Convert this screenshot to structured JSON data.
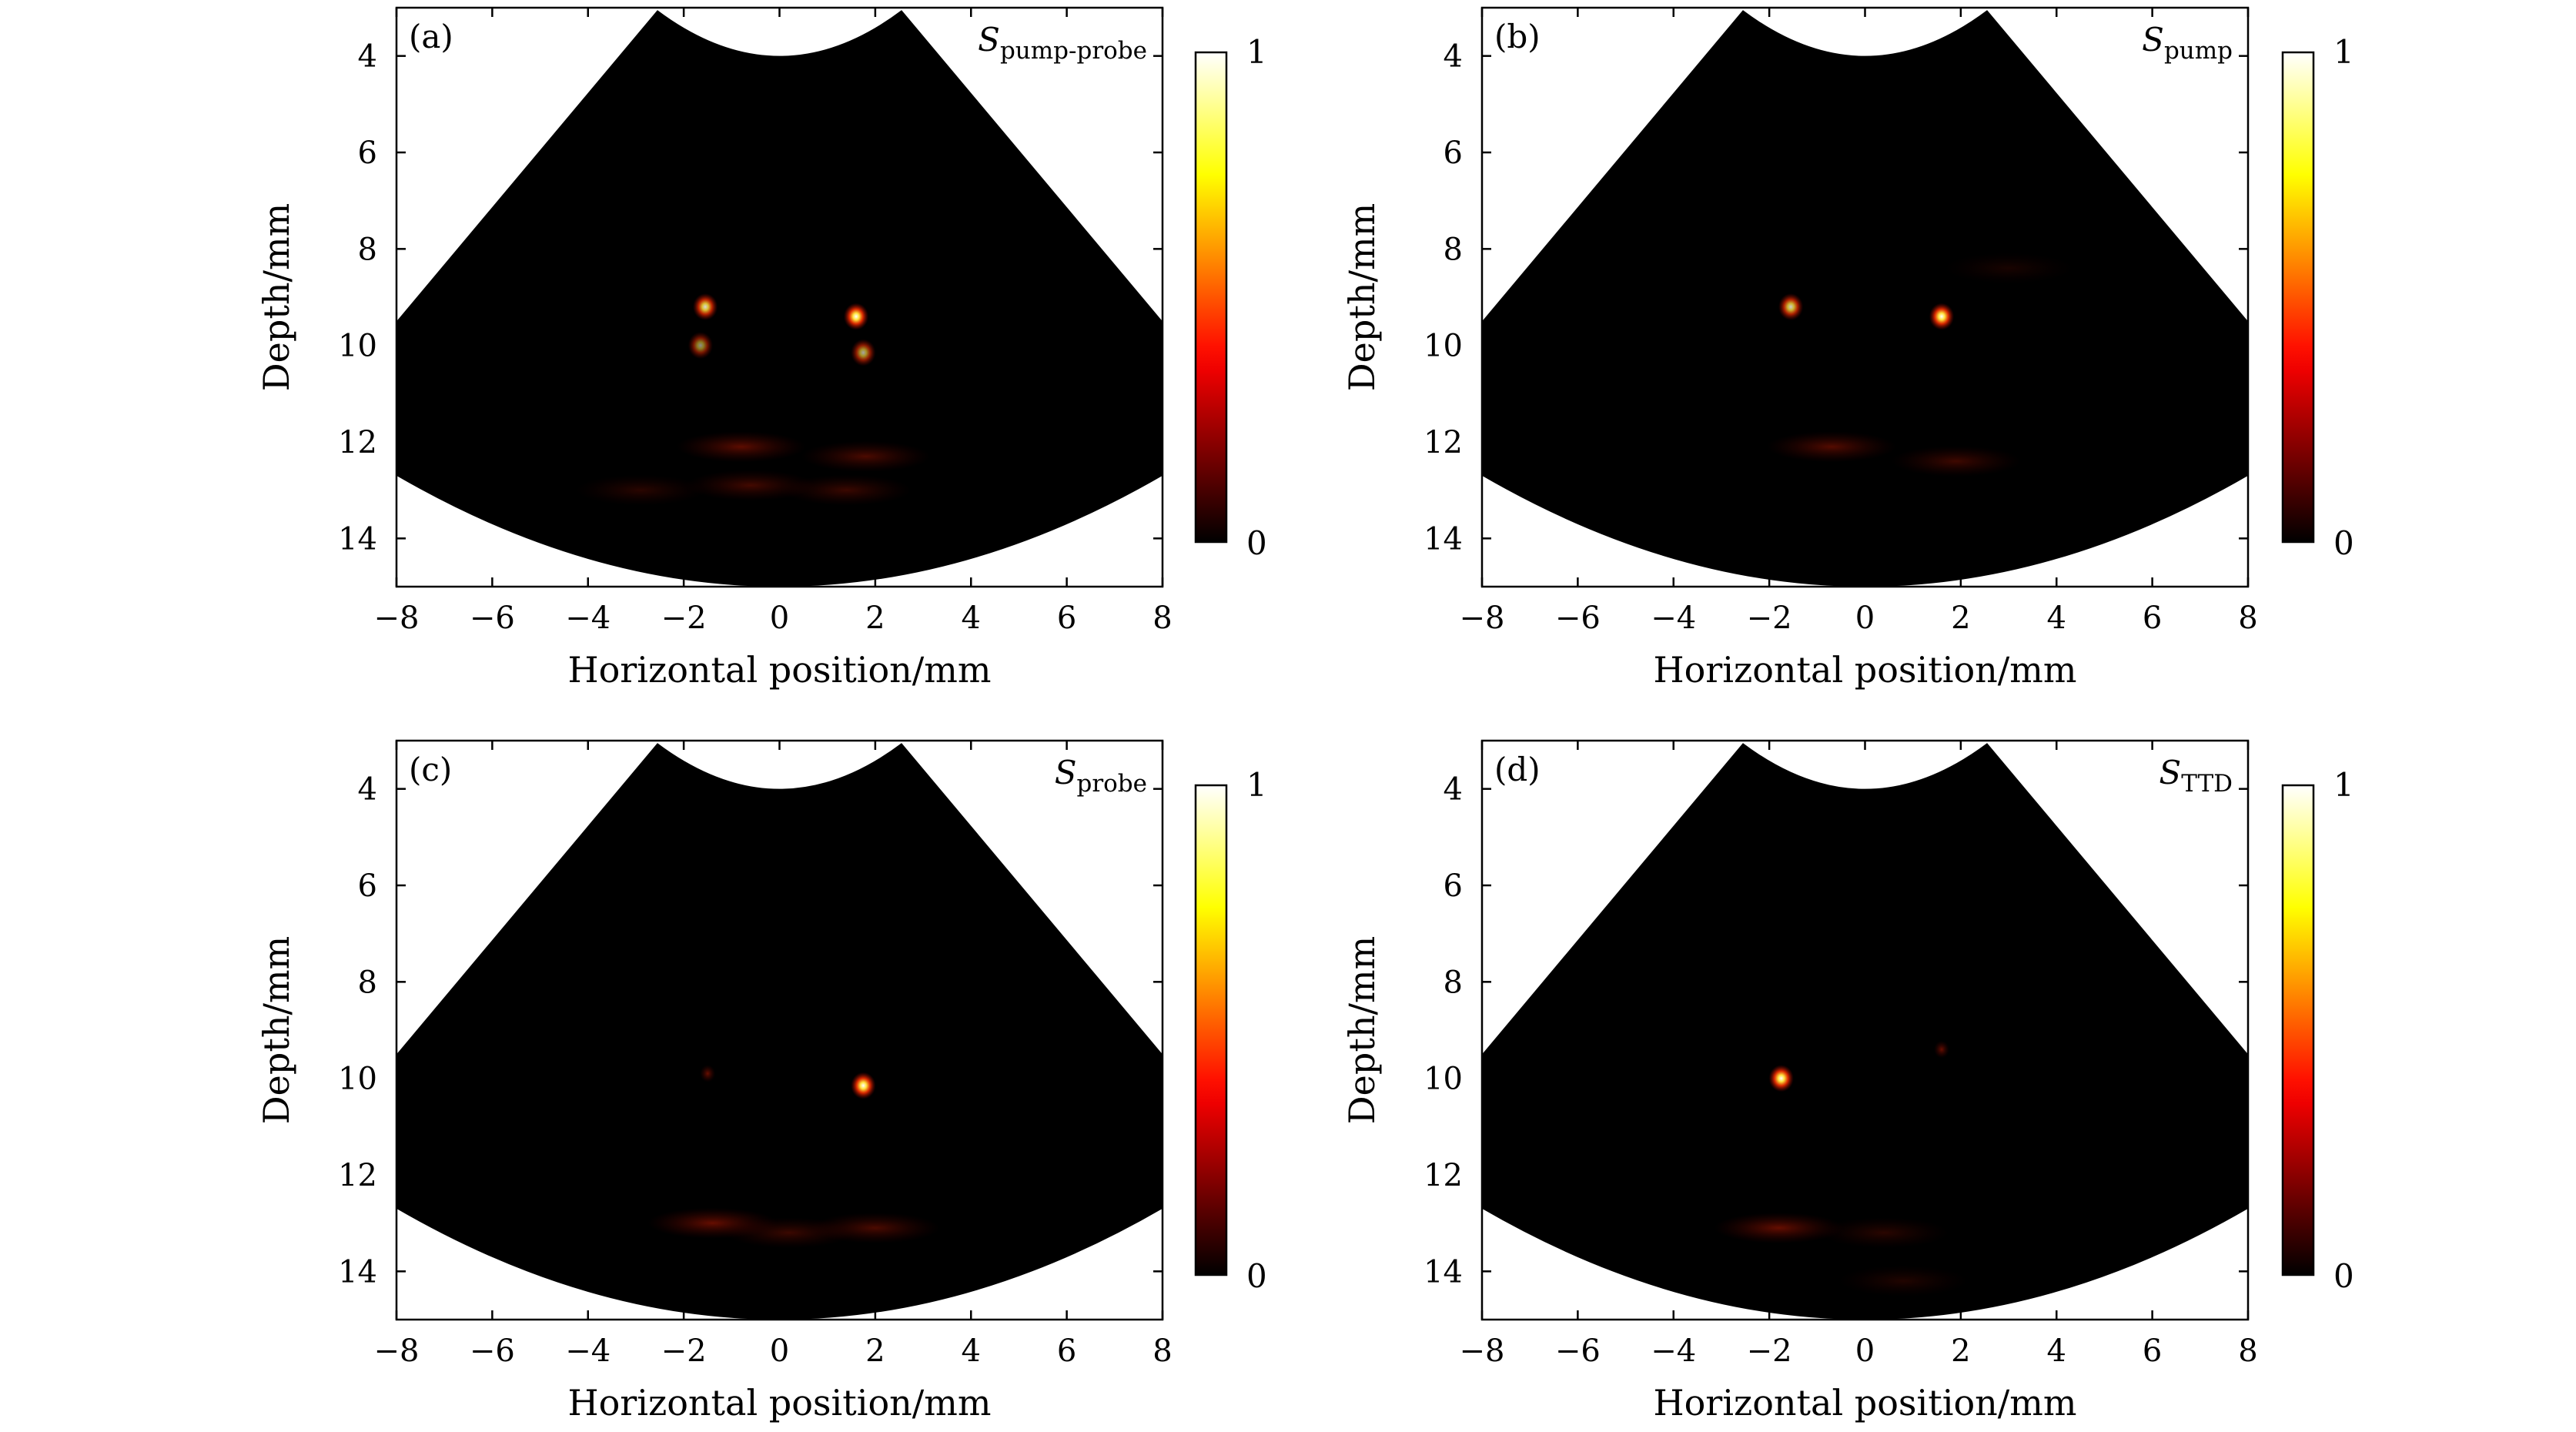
{
  "chart_data": [
    {
      "type": "heatmap",
      "panel_label": "(a)",
      "signal_symbol": "S",
      "signal_subscript": "pump-probe",
      "xlabel": "Horizontal position/mm",
      "ylabel": "Depth/mm",
      "xlim": [
        -8,
        8
      ],
      "ylim": [
        15,
        3
      ],
      "xticks": [
        -8,
        -6,
        -4,
        -2,
        0,
        2,
        4,
        6,
        8
      ],
      "yticks": [
        4,
        6,
        8,
        10,
        12,
        14
      ],
      "colorbar": {
        "min": 0,
        "max": 1,
        "min_label": "0",
        "max_label": "1",
        "colormap": "hot"
      },
      "spots": [
        {
          "x": -1.55,
          "y": 9.2,
          "intensity": 0.85
        },
        {
          "x": 1.6,
          "y": 9.4,
          "intensity": 1.0
        },
        {
          "x": -1.65,
          "y": 10.0,
          "intensity": 0.55
        },
        {
          "x": 1.75,
          "y": 10.15,
          "intensity": 0.65
        }
      ],
      "artifacts": [
        {
          "x": -0.8,
          "y": 12.1,
          "intensity": 0.22
        },
        {
          "x": 1.8,
          "y": 12.3,
          "intensity": 0.18
        },
        {
          "x": -0.6,
          "y": 12.9,
          "intensity": 0.16
        },
        {
          "x": 1.4,
          "y": 13.0,
          "intensity": 0.14
        },
        {
          "x": -2.9,
          "y": 13.0,
          "intensity": 0.1
        }
      ]
    },
    {
      "type": "heatmap",
      "panel_label": "(b)",
      "signal_symbol": "S",
      "signal_subscript": "pump",
      "xlabel": "Horizontal position/mm",
      "ylabel": "Depth/mm",
      "xlim": [
        -8,
        8
      ],
      "ylim": [
        15,
        3
      ],
      "xticks": [
        -8,
        -6,
        -4,
        -2,
        0,
        2,
        4,
        6,
        8
      ],
      "yticks": [
        4,
        6,
        8,
        10,
        12,
        14
      ],
      "colorbar": {
        "min": 0,
        "max": 1,
        "min_label": "0",
        "max_label": "1",
        "colormap": "hot"
      },
      "spots": [
        {
          "x": -1.55,
          "y": 9.2,
          "intensity": 0.8
        },
        {
          "x": 1.6,
          "y": 9.4,
          "intensity": 1.0
        }
      ],
      "artifacts": [
        {
          "x": -0.7,
          "y": 12.1,
          "intensity": 0.2
        },
        {
          "x": 1.9,
          "y": 12.4,
          "intensity": 0.15
        },
        {
          "x": 3.0,
          "y": 8.4,
          "intensity": 0.06
        }
      ]
    },
    {
      "type": "heatmap",
      "panel_label": "(c)",
      "signal_symbol": "S",
      "signal_subscript": "probe",
      "xlabel": "Horizontal position/mm",
      "ylabel": "Depth/mm",
      "xlim": [
        -8,
        8
      ],
      "ylim": [
        15,
        3
      ],
      "xticks": [
        -8,
        -6,
        -4,
        -2,
        0,
        2,
        4,
        6,
        8
      ],
      "yticks": [
        4,
        6,
        8,
        10,
        12,
        14
      ],
      "colorbar": {
        "min": 0,
        "max": 1,
        "min_label": "0",
        "max_label": "1",
        "colormap": "hot"
      },
      "spots": [
        {
          "x": 1.75,
          "y": 10.15,
          "intensity": 1.0
        },
        {
          "x": -1.5,
          "y": 9.9,
          "intensity": 0.12
        }
      ],
      "artifacts": [
        {
          "x": -1.4,
          "y": 13.0,
          "intensity": 0.24
        },
        {
          "x": 0.2,
          "y": 13.2,
          "intensity": 0.14
        },
        {
          "x": 2.0,
          "y": 13.1,
          "intensity": 0.18
        }
      ]
    },
    {
      "type": "heatmap",
      "panel_label": "(d)",
      "signal_symbol": "S",
      "signal_subscript": "TTD",
      "xlabel": "Horizontal position/mm",
      "ylabel": "Depth/mm",
      "xlim": [
        -8,
        8
      ],
      "ylim": [
        15,
        3
      ],
      "xticks": [
        -8,
        -6,
        -4,
        -2,
        0,
        2,
        4,
        6,
        8
      ],
      "yticks": [
        4,
        6,
        8,
        10,
        12,
        14
      ],
      "colorbar": {
        "min": 0,
        "max": 1,
        "min_label": "0",
        "max_label": "1",
        "colormap": "hot"
      },
      "spots": [
        {
          "x": -1.75,
          "y": 10.0,
          "intensity": 1.0
        },
        {
          "x": 1.6,
          "y": 9.4,
          "intensity": 0.12
        }
      ],
      "artifacts": [
        {
          "x": -1.8,
          "y": 13.1,
          "intensity": 0.24
        },
        {
          "x": 0.4,
          "y": 13.2,
          "intensity": 0.1
        },
        {
          "x": 0.8,
          "y": 14.2,
          "intensity": 0.08
        }
      ]
    }
  ]
}
